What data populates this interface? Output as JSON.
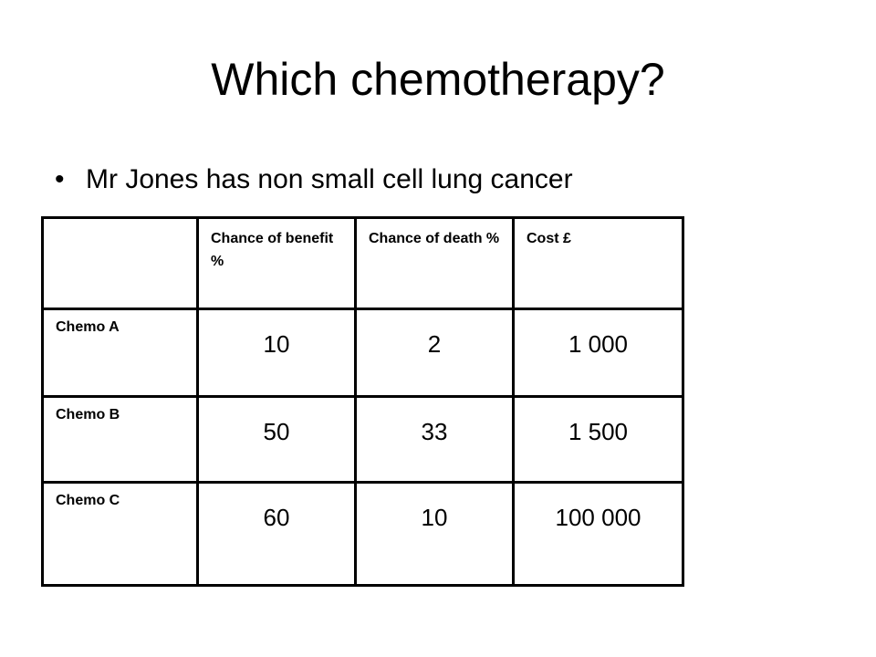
{
  "title": "Which chemotherapy?",
  "bullets": [
    "Mr Jones has non small cell lung cancer"
  ],
  "table": {
    "columns": [
      "Chance of benefit %",
      "Chance of death %",
      "Cost £"
    ],
    "rows": [
      {
        "label": "Chemo A",
        "cells": [
          "10",
          "2",
          "1 000"
        ]
      },
      {
        "label": "Chemo B",
        "cells": [
          "50",
          "33",
          "1 500"
        ]
      },
      {
        "label": "Chemo C",
        "cells": [
          "60",
          "10",
          "100 000"
        ]
      }
    ]
  }
}
